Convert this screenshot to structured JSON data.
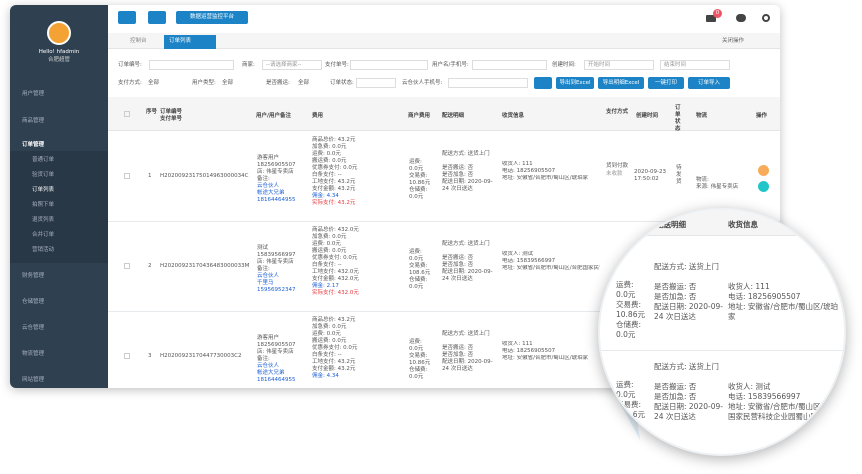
{
  "sidebar": {
    "greeting": "Hello! hfadmin",
    "role": "合肥超管",
    "menu": [
      "用户管理",
      "商品管理",
      "订单管理",
      "财务管理",
      "仓储管理",
      "云仓管理",
      "物流管理",
      "网站管理"
    ],
    "submenu": [
      "普通订单",
      "验货订单",
      "订单列表",
      "拍照下单",
      "退货列表",
      "合并订单",
      "营销活动"
    ]
  },
  "topbar": {
    "platform_button": "数据运营监控平台",
    "badge": "0"
  },
  "tabs": {
    "items": [
      "控制台",
      "订单列表"
    ],
    "close": "关闭操作"
  },
  "filters": {
    "order_no": "订单编号:",
    "merchant": "商家:",
    "merchant_placeholder": "--请选择商家--",
    "pay_no": "支付单号:",
    "user": "用户名/手机号:",
    "created": "创建时间:",
    "start": "开始时间",
    "end": "结束时间",
    "pay_method": "支付方式:",
    "user_type": "用户类型:",
    "carry": "是否搬运:",
    "status": "订单状态:",
    "partner_phone": "云仓伙人手机号:",
    "all": "全部"
  },
  "buttons": [
    "导出到Excel",
    "导出明细Excel",
    "一键打印",
    "订单导入"
  ],
  "table": {
    "headers": [
      "序号",
      "订单编号",
      "支付单号",
      "用户/用户备注",
      "费用",
      "商户费用",
      "配送明细",
      "收货信息",
      "支付方式",
      "创建时间",
      "订单状态",
      "物流",
      "操作"
    ],
    "rows": [
      {
        "no": "1",
        "order": "H20200923175014963000034C",
        "user": [
          "游客用户",
          "18256905507",
          "店: 伟星专卖店",
          "备注:"
        ],
        "partner": [
          "云仓伙人",
          "帐途大兄弟",
          "18164464955"
        ],
        "fees": [
          "商品总价: 43.2元",
          "加急费: 0.0元",
          "运费: 0.0元",
          "搬运费: 0.0元",
          "优惠券支付: 0.0元",
          "白条支付: --",
          "工地支付: 43.2元",
          "支付金额: 43.2元"
        ],
        "commission": "佣金: 4.34",
        "actual": "实际支付: 43.2元",
        "merchant_fees": [
          "运费:",
          "0.0元",
          "交易费:",
          "10.86元",
          "仓储费:",
          "0.0元"
        ],
        "delivery": [
          "配送方式: 送货上门",
          "是否搬运: 否",
          "是否加急: 否",
          "配送日期: 2020-09-24 次日送达"
        ],
        "receive": [
          "收货人: 111",
          "电话: 18256905507",
          "地址: 安徽省/合肥市/蜀山区/琥珀家"
        ],
        "pay": [
          "货到付款",
          "未收款"
        ],
        "time": "2020-09-23 17:50:02",
        "status": "待发货",
        "logistics": [
          "物流:",
          "来源: 伟星专卖店"
        ]
      },
      {
        "no": "2",
        "order": "H20200923170436483000033M",
        "user": [
          "测试",
          "15839566997",
          "店: 伟星专卖店",
          "备注:"
        ],
        "partner": [
          "云仓伙人",
          "千里马",
          "15956952347"
        ],
        "fees": [
          "商品总价: 432.0元",
          "加急费: 0.0元",
          "运费: 0.0元",
          "搬运费: 0.0元",
          "优惠券支付: 0.0元",
          "白条支付: --",
          "工地支付: 432.0元",
          "支付金额: 432.0元"
        ],
        "commission": "佣金: 2.17",
        "actual": "实际支付: 432.0元",
        "merchant_fees": [
          "运费:",
          "0.0元",
          "交易费:",
          "108.6元",
          "仓储费:",
          "0.0元"
        ],
        "delivery": [
          "配送方式: 送货上门",
          "是否搬运: 否",
          "是否加急: 否",
          "配送日期: 2020-09-24 次日送达"
        ],
        "receive": [
          "收货人: 测试",
          "电话: 15839566997",
          "地址: 安徽省/合肥市/蜀山区/合肥国家民营科技企业园蜀山园"
        ],
        "pay": [],
        "time": "",
        "status": "",
        "logistics": []
      },
      {
        "no": "3",
        "order": "H20200923170447730003C2",
        "user": [
          "游客用户",
          "18256905507",
          "店: 伟星专卖店",
          "备注:"
        ],
        "partner": [
          "云仓伙人",
          "帐途大兄弟",
          "18164464955"
        ],
        "fees": [
          "商品总价: 43.2元",
          "加急费: 0.0元",
          "运费: 0.0元",
          "搬运费: 0.0元",
          "优惠券支付: 0.0元",
          "白条支付: --",
          "工地支付: 43.2元",
          "支付金额: 43.2元"
        ],
        "commission": "佣金: 4.34",
        "actual": "",
        "merchant_fees": [
          "运费:",
          "0.0元",
          "交易费:",
          "10.86元",
          "仓储费:",
          "0.0元"
        ],
        "delivery": [
          "配送方式: 送货上门",
          "是否搬运: 否",
          "是否加急: 否",
          "配送日期: 2020-09-24 次日送达"
        ],
        "receive": [
          "收货人: 111",
          "电话: 18256905507",
          "地址: 安徽省/合肥市/蜀山区/琥珀家"
        ],
        "pay": [],
        "time": "",
        "status": "",
        "logistics": []
      }
    ]
  }
}
